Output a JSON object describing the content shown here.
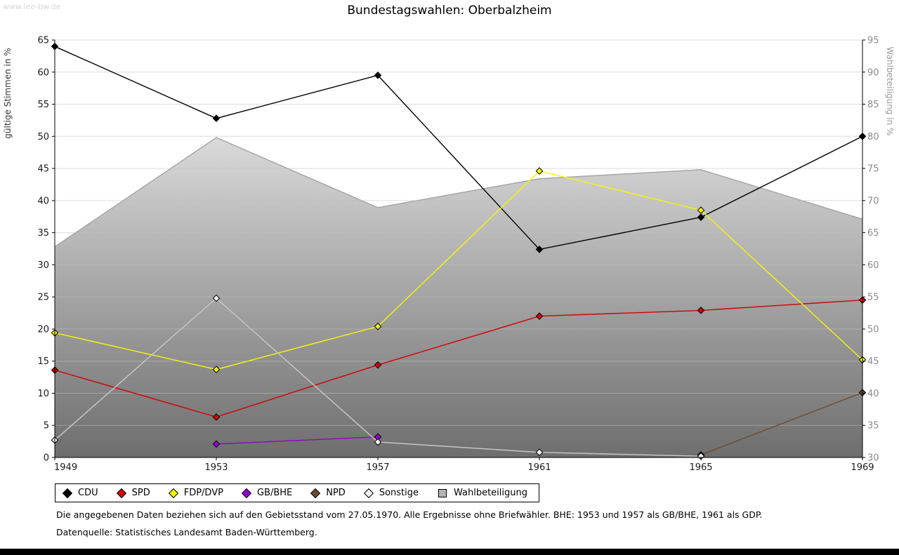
{
  "watermark": "www.leo-bw.de",
  "title": "Bundestagswahlen: Oberbalzheim",
  "footnotes": {
    "line1": "Die angegebenen Daten beziehen sich auf den Gebietsstand vom 27.05.1970. Alle Ergebnisse ohne Briefwähler. BHE: 1953 und 1957 als GB/BHE, 1961 als GDP.",
    "line2": "Datenquelle: Statistisches Landesamt Baden-Württemberg."
  },
  "chart_data": {
    "type": "line",
    "title": "Bundestagswahlen: Oberbalzheim",
    "x": [
      1949,
      1953,
      1957,
      1961,
      1965,
      1969
    ],
    "left_axis": {
      "label": "gültige Stimmen in %",
      "min": 0,
      "max": 65,
      "step": 5
    },
    "right_axis": {
      "label": "Wahlbeteiligung in %",
      "min": 30,
      "max": 95,
      "step": 5
    },
    "grid": true,
    "legend_position": "bottom",
    "area_gradient": {
      "top": "#fafafa",
      "bottom": "#6e6e6e"
    },
    "series": [
      {
        "name": "CDU",
        "axis": "left",
        "kind": "line",
        "color": "#000000",
        "marker_fill": "#000000",
        "values": [
          64.0,
          52.8,
          59.5,
          32.4,
          37.4,
          50.0
        ]
      },
      {
        "name": "SPD",
        "axis": "left",
        "kind": "line",
        "color": "#d40000",
        "marker_fill": "#d40000",
        "values": [
          13.6,
          6.3,
          14.4,
          22.0,
          22.9,
          24.5
        ]
      },
      {
        "name": "FDP/DVP",
        "axis": "left",
        "kind": "line",
        "color": "#f5f50a",
        "marker_fill": "#f5f50a",
        "values": [
          19.4,
          13.7,
          20.4,
          44.6,
          38.5,
          15.2
        ]
      },
      {
        "name": "GB/BHE",
        "axis": "left",
        "kind": "line",
        "color": "#9400d3",
        "marker_fill": "#9400d3",
        "values": [
          null,
          2.1,
          3.2,
          null,
          null,
          null
        ]
      },
      {
        "name": "NPD",
        "axis": "left",
        "kind": "line",
        "color": "#6b4c34",
        "marker_fill": "#6b4c34",
        "values": [
          null,
          null,
          null,
          null,
          0.4,
          10.1
        ]
      },
      {
        "name": "Sonstige",
        "axis": "left",
        "kind": "line",
        "color": "#c8c8c8",
        "marker_fill": "#efefef",
        "values": [
          2.7,
          24.8,
          2.4,
          0.8,
          0.2,
          null
        ]
      },
      {
        "name": "Wahlbeteiligung",
        "axis": "right",
        "kind": "area",
        "color": "#a6a6a6",
        "marker_fill": "#b4b4b4",
        "values": [
          62.8,
          79.8,
          68.9,
          73.4,
          74.8,
          67.1
        ]
      }
    ]
  }
}
